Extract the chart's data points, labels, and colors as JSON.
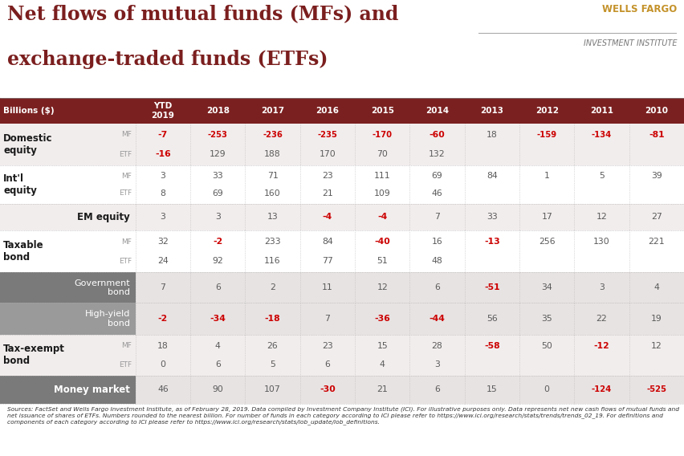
{
  "title_line1": "Net flows of mutual funds (MFs) and",
  "title_line2": "exchange-traded funds (ETFs)",
  "title_color": "#7B1E1E",
  "wells_fargo_text": "WELLS FARGO",
  "institute_text": "INVESTMENT INSTITUTE",
  "wells_fargo_color": "#C4922A",
  "institute_color": "#777777",
  "header_bg": "#7B2020",
  "header_text_color": "#FFFFFF",
  "columns": [
    "Billions ($)",
    "YTD\n2019",
    "2018",
    "2017",
    "2016",
    "2015",
    "2014",
    "2013",
    "2012",
    "2011",
    "2010"
  ],
  "rows": [
    {
      "label": "Domestic\nequity",
      "label_bold": true,
      "sub_label": "MF",
      "sub_label2": "ETF",
      "bg": "#F2EDED",
      "label_bg": "#F2EDED",
      "values_mf": [
        "-7",
        "-253",
        "-236",
        "-235",
        "-170",
        "-60",
        "18",
        "-159",
        "-134",
        "-81"
      ],
      "values_etf": [
        "-16",
        "129",
        "188",
        "170",
        "70",
        "132",
        "",
        "",
        "",
        ""
      ]
    },
    {
      "label": "Int'l\nequity",
      "label_bold": true,
      "sub_label": "MF",
      "sub_label2": "ETF",
      "bg": "#FFFFFF",
      "label_bg": "#FFFFFF",
      "values_mf": [
        "3",
        "33",
        "71",
        "23",
        "111",
        "69",
        "84",
        "1",
        "5",
        "39"
      ],
      "values_etf": [
        "8",
        "69",
        "160",
        "21",
        "109",
        "46",
        "",
        "",
        "",
        ""
      ]
    },
    {
      "label": "EM equity",
      "label_bold": true,
      "sub_label": "",
      "sub_label2": "",
      "bg": "#F2EDED",
      "label_bg": "#F2EDED",
      "values_mf": [
        "3",
        "3",
        "13",
        "-4",
        "-4",
        "7",
        "33",
        "17",
        "12",
        "27"
      ],
      "values_etf": []
    },
    {
      "label": "Taxable\nbond",
      "label_bold": true,
      "sub_label": "MF",
      "sub_label2": "ETF",
      "bg": "#FFFFFF",
      "label_bg": "#FFFFFF",
      "values_mf": [
        "32",
        "-2",
        "233",
        "84",
        "-40",
        "16",
        "-13",
        "256",
        "130",
        "221"
      ],
      "values_etf": [
        "24",
        "92",
        "116",
        "77",
        "51",
        "48",
        "",
        "",
        "",
        ""
      ]
    },
    {
      "label": "Government\nbond",
      "label_bold": false,
      "sub_label": "",
      "sub_label2": "",
      "bg": "#E8E3E3",
      "label_bg": "#7A7A7A",
      "values_mf": [
        "7",
        "6",
        "2",
        "11",
        "12",
        "6",
        "-51",
        "34",
        "3",
        "4"
      ],
      "values_etf": []
    },
    {
      "label": "High-yield\nbond",
      "label_bold": false,
      "sub_label": "",
      "sub_label2": "",
      "bg": "#E8E3E3",
      "label_bg": "#9A9A9A",
      "values_mf": [
        "-2",
        "-34",
        "-18",
        "7",
        "-36",
        "-44",
        "56",
        "35",
        "22",
        "19"
      ],
      "values_etf": []
    },
    {
      "label": "Tax-exempt\nbond",
      "label_bold": true,
      "sub_label": "MF",
      "sub_label2": "ETF",
      "bg": "#F2EDED",
      "label_bg": "#F2EDED",
      "values_mf": [
        "18",
        "4",
        "26",
        "23",
        "15",
        "28",
        "-58",
        "50",
        "-12",
        "12"
      ],
      "values_etf": [
        "0",
        "6",
        "5",
        "6",
        "4",
        "3",
        "",
        "",
        "",
        ""
      ]
    },
    {
      "label": "Money market",
      "label_bold": true,
      "sub_label": "",
      "sub_label2": "",
      "bg": "#E8E3E3",
      "label_bg": "#7A7A7A",
      "values_mf": [
        "46",
        "90",
        "107",
        "-30",
        "21",
        "6",
        "15",
        "0",
        "-124",
        "-525"
      ],
      "values_etf": []
    }
  ],
  "footer_text": "Sources: FactSet and Wells Fargo Investment Institute, as of February 28, 2019. Data compiled by Investment Company Institute (ICI). For illustrative purposes only. Data represents net new cash flows of mutual funds and net issuance of shares of ETFs. Numbers rounded to the nearest billion. For number of funds in each category according to ICI please refer to https://www.ici.org/research/stats/trends/trends_02_19. For definitions and components of each category according to ICI please refer to https://www.ici.org/research/stats/iob_update/iob_definitions.",
  "footer_color": "#333333",
  "negative_color": "#CC0000",
  "positive_color": "#5A5A5A",
  "mf_etf_label_color": "#999999",
  "row_label_color_light": "#1A1A1A",
  "row_label_color_dark_bg": "#FFFFFF"
}
